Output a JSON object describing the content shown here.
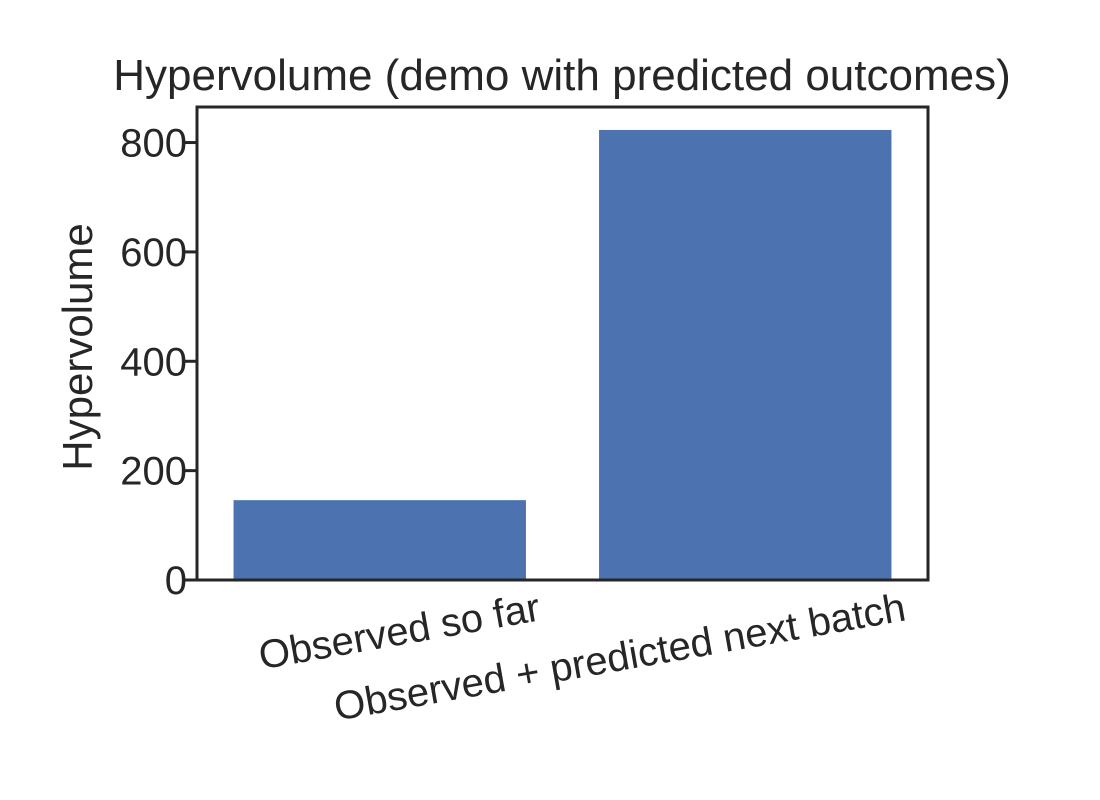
{
  "chart_data": {
    "type": "bar",
    "title": "Hypervolume (demo with predicted outcomes)",
    "xlabel": "",
    "ylabel": "Hypervolume",
    "categories": [
      "Observed so far",
      "Observed + predicted next batch"
    ],
    "values": [
      146,
      823
    ],
    "ylim": [
      0,
      865
    ],
    "yticks": [
      0,
      200,
      400,
      600,
      800
    ],
    "grid": false,
    "legend": "none",
    "bar_color": "#4c72b0",
    "axis_color": "#262626"
  }
}
